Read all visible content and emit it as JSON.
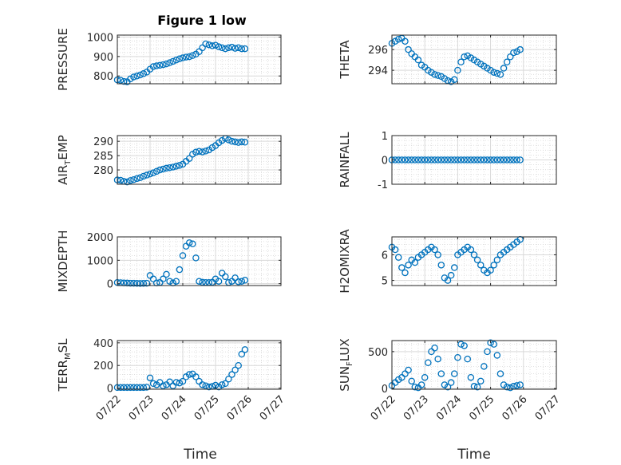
{
  "figure": {
    "title": "Figure 1 low",
    "xlabel": "Time"
  },
  "colors": {
    "marker": "#0072BD",
    "axis": "#262626",
    "grid": "#d9d9d9"
  },
  "xticks": [
    "07/22",
    "07/23",
    "07/24",
    "07/25",
    "07/26",
    "07/27"
  ],
  "chart_data": [
    {
      "type": "scatter",
      "ylabel": "PRESSURE",
      "ylim": [
        760,
        1010
      ],
      "yticks": [
        800,
        900,
        1000
      ],
      "series": [
        {
          "x": [
            22.0,
            22.1,
            22.2,
            22.3,
            22.4,
            22.5,
            22.6,
            22.7,
            22.8,
            22.9,
            23.0,
            23.1,
            23.2,
            23.3,
            23.4,
            23.5,
            23.6,
            23.7,
            23.8,
            23.9,
            24.0,
            24.1,
            24.2,
            24.3,
            24.4,
            24.5,
            24.6,
            24.7,
            24.8,
            24.9,
            25.0,
            25.1,
            25.2,
            25.3,
            25.4,
            25.5,
            25.6,
            25.7,
            25.8,
            25.9
          ],
          "y": [
            780,
            778,
            772,
            770,
            785,
            795,
            800,
            805,
            812,
            820,
            835,
            848,
            852,
            855,
            858,
            862,
            868,
            875,
            882,
            888,
            893,
            897,
            899,
            905,
            912,
            925,
            945,
            965,
            960,
            955,
            958,
            950,
            945,
            940,
            945,
            948,
            942,
            945,
            940,
            940
          ]
        }
      ]
    },
    {
      "type": "scatter",
      "ylabel": "THETA",
      "ylim": [
        292.7,
        297.4
      ],
      "yticks": [
        294,
        296
      ],
      "series": [
        {
          "x": [
            22.0,
            22.1,
            22.2,
            22.3,
            22.4,
            22.5,
            22.6,
            22.7,
            22.8,
            22.9,
            23.0,
            23.1,
            23.2,
            23.3,
            23.4,
            23.5,
            23.6,
            23.7,
            23.8,
            23.9,
            24.0,
            24.1,
            24.2,
            24.3,
            24.4,
            24.5,
            24.6,
            24.7,
            24.8,
            24.9,
            25.0,
            25.1,
            25.2,
            25.3,
            25.4,
            25.5,
            25.6,
            25.7,
            25.8,
            25.9
          ],
          "y": [
            296.6,
            296.8,
            297.0,
            297.1,
            296.8,
            296.0,
            295.6,
            295.3,
            295.0,
            294.5,
            294.3,
            294.0,
            293.8,
            293.6,
            293.5,
            293.4,
            293.2,
            293.0,
            292.9,
            293.1,
            294.0,
            294.8,
            295.3,
            295.4,
            295.2,
            295.0,
            294.8,
            294.6,
            294.4,
            294.2,
            294.0,
            293.8,
            293.7,
            293.6,
            294.2,
            294.8,
            295.3,
            295.7,
            295.8,
            296.0
          ]
        }
      ]
    },
    {
      "type": "scatter",
      "ylabel": "AIR_TEMP",
      "ylim": [
        275,
        292
      ],
      "yticks": [
        280,
        285,
        290
      ],
      "series": [
        {
          "x": [
            22.0,
            22.1,
            22.2,
            22.3,
            22.4,
            22.5,
            22.6,
            22.7,
            22.8,
            22.9,
            23.0,
            23.1,
            23.2,
            23.3,
            23.4,
            23.5,
            23.6,
            23.7,
            23.8,
            23.9,
            24.0,
            24.1,
            24.2,
            24.3,
            24.4,
            24.5,
            24.6,
            24.7,
            24.8,
            24.9,
            25.0,
            25.1,
            25.2,
            25.3,
            25.4,
            25.5,
            25.6,
            25.7,
            25.8,
            25.9
          ],
          "y": [
            276.5,
            276.4,
            276.0,
            275.8,
            276.3,
            276.6,
            277.0,
            277.3,
            277.8,
            278.2,
            278.6,
            279.0,
            279.5,
            280.0,
            280.3,
            280.6,
            280.8,
            281.0,
            281.3,
            281.6,
            282.0,
            283.0,
            284.0,
            285.5,
            286.2,
            286.5,
            286.3,
            286.6,
            287.0,
            287.8,
            288.5,
            289.5,
            290.3,
            291.0,
            290.5,
            290.0,
            289.8,
            289.6,
            289.8,
            289.7
          ]
        }
      ]
    },
    {
      "type": "scatter",
      "ylabel": "RAINFALL",
      "ylim": [
        -1,
        1
      ],
      "yticks": [
        -1,
        0,
        1
      ],
      "series": [
        {
          "x": [
            22.0,
            22.1,
            22.2,
            22.3,
            22.4,
            22.5,
            22.6,
            22.7,
            22.8,
            22.9,
            23.0,
            23.1,
            23.2,
            23.3,
            23.4,
            23.5,
            23.6,
            23.7,
            23.8,
            23.9,
            24.0,
            24.1,
            24.2,
            24.3,
            24.4,
            24.5,
            24.6,
            24.7,
            24.8,
            24.9,
            25.0,
            25.1,
            25.2,
            25.3,
            25.4,
            25.5,
            25.6,
            25.7,
            25.8,
            25.9
          ],
          "y": [
            0,
            0,
            0,
            0,
            0,
            0,
            0,
            0,
            0,
            0,
            0,
            0,
            0,
            0,
            0,
            0,
            0,
            0,
            0,
            0,
            0,
            0,
            0,
            0,
            0,
            0,
            0,
            0,
            0,
            0,
            0,
            0,
            0,
            0,
            0,
            0,
            0,
            0,
            0,
            0
          ]
        }
      ]
    },
    {
      "type": "scatter",
      "ylabel": "MIXDEPTH",
      "ylim": [
        -80,
        2000
      ],
      "yticks": [
        0,
        1000,
        2000
      ],
      "series": [
        {
          "x": [
            22.0,
            22.1,
            22.2,
            22.3,
            22.4,
            22.5,
            22.6,
            22.7,
            22.8,
            22.9,
            23.0,
            23.1,
            23.2,
            23.3,
            23.4,
            23.5,
            23.6,
            23.7,
            23.8,
            23.9,
            24.0,
            24.1,
            24.2,
            24.3,
            24.4,
            24.5,
            24.6,
            24.7,
            24.8,
            24.9,
            25.0,
            25.1,
            25.2,
            25.3,
            25.4,
            25.5,
            25.6,
            25.7,
            25.8,
            25.9
          ],
          "y": [
            50,
            40,
            30,
            25,
            20,
            20,
            15,
            10,
            15,
            20,
            350,
            200,
            30,
            50,
            200,
            400,
            100,
            30,
            100,
            600,
            1200,
            1600,
            1750,
            1700,
            1100,
            100,
            60,
            50,
            50,
            60,
            200,
            100,
            450,
            300,
            50,
            100,
            250,
            80,
            100,
            150
          ]
        }
      ]
    },
    {
      "type": "scatter",
      "ylabel": "H2OMIXRA",
      "ylim": [
        4.8,
        6.7
      ],
      "yticks": [
        5,
        6
      ],
      "series": [
        {
          "x": [
            22.0,
            22.1,
            22.2,
            22.3,
            22.4,
            22.5,
            22.6,
            22.7,
            22.8,
            22.9,
            23.0,
            23.1,
            23.2,
            23.3,
            23.4,
            23.5,
            23.6,
            23.7,
            23.8,
            23.9,
            24.0,
            24.1,
            24.2,
            24.3,
            24.4,
            24.5,
            24.6,
            24.7,
            24.8,
            24.9,
            25.0,
            25.1,
            25.2,
            25.3,
            25.4,
            25.5,
            25.6,
            25.7,
            25.8,
            25.9
          ],
          "y": [
            6.3,
            6.2,
            5.9,
            5.5,
            5.3,
            5.6,
            5.8,
            5.7,
            5.9,
            6.0,
            6.1,
            6.2,
            6.3,
            6.2,
            6.0,
            5.6,
            5.1,
            5.0,
            5.2,
            5.5,
            6.0,
            6.1,
            6.2,
            6.3,
            6.2,
            6.0,
            5.8,
            5.6,
            5.4,
            5.3,
            5.4,
            5.6,
            5.8,
            6.0,
            6.1,
            6.2,
            6.3,
            6.4,
            6.5,
            6.6
          ]
        }
      ]
    },
    {
      "type": "scatter",
      "ylabel": "TERR_MSL",
      "ylim": [
        -10,
        420
      ],
      "yticks": [
        0,
        200,
        400
      ],
      "series": [
        {
          "x": [
            22.0,
            22.1,
            22.2,
            22.3,
            22.4,
            22.5,
            22.6,
            22.7,
            22.8,
            22.9,
            23.0,
            23.1,
            23.2,
            23.3,
            23.4,
            23.5,
            23.6,
            23.7,
            23.8,
            23.9,
            24.0,
            24.1,
            24.2,
            24.3,
            24.4,
            24.5,
            24.6,
            24.7,
            24.8,
            24.9,
            25.0,
            25.1,
            25.2,
            25.3,
            25.4,
            25.5,
            25.6,
            25.7,
            25.8,
            25.9
          ],
          "y": [
            5,
            5,
            5,
            5,
            5,
            5,
            5,
            5,
            5,
            8,
            90,
            40,
            30,
            50,
            20,
            30,
            55,
            20,
            50,
            45,
            60,
            100,
            120,
            125,
            100,
            60,
            30,
            20,
            10,
            15,
            25,
            10,
            30,
            40,
            80,
            120,
            160,
            200,
            300,
            340
          ]
        }
      ]
    },
    {
      "type": "scatter",
      "ylabel": "SUN_FLUX",
      "ylim": [
        -10,
        650
      ],
      "yticks": [
        0,
        500
      ],
      "series": [
        {
          "x": [
            22.0,
            22.1,
            22.2,
            22.3,
            22.4,
            22.5,
            22.6,
            22.7,
            22.8,
            22.9,
            23.0,
            23.1,
            23.2,
            23.3,
            23.4,
            23.5,
            23.6,
            23.7,
            23.8,
            23.9,
            24.0,
            24.1,
            24.2,
            24.3,
            24.4,
            24.5,
            24.6,
            24.7,
            24.8,
            24.9,
            25.0,
            25.1,
            25.2,
            25.3,
            25.4,
            25.5,
            25.6,
            25.7,
            25.8,
            25.9
          ],
          "y": [
            40,
            80,
            120,
            150,
            200,
            250,
            100,
            20,
            10,
            50,
            150,
            350,
            500,
            550,
            400,
            200,
            50,
            20,
            80,
            200,
            420,
            600,
            580,
            400,
            150,
            30,
            20,
            100,
            300,
            500,
            620,
            600,
            450,
            200,
            50,
            20,
            10,
            30,
            40,
            50
          ]
        }
      ]
    }
  ]
}
